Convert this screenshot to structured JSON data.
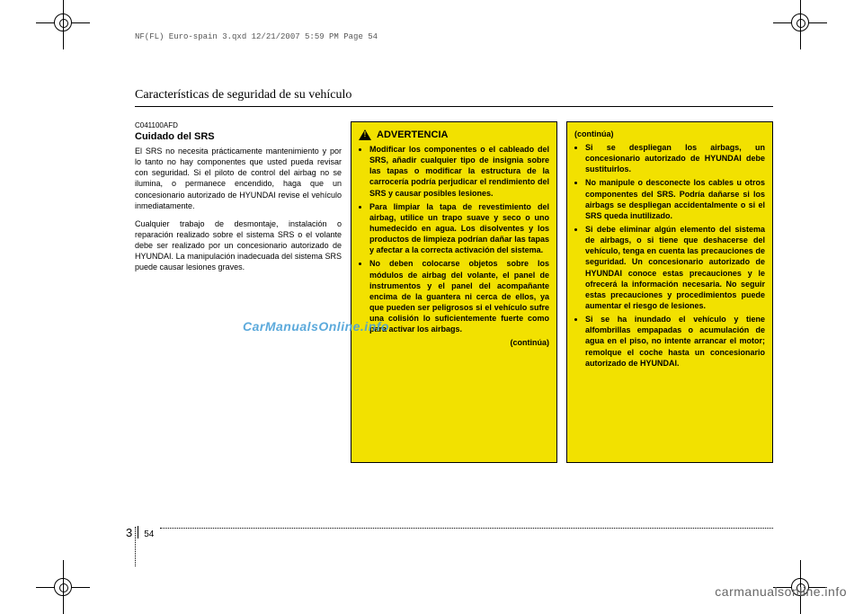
{
  "header_line": "NF(FL) Euro-spain 3.qxd  12/21/2007  5:59 PM  Page 54",
  "section_title": "Características de seguridad de su vehículo",
  "col1": {
    "code": "C041100AFD",
    "title": "Cuidado del SRS",
    "para1": "El SRS no necesita prácticamente mantenimiento y por lo tanto no hay componentes que usted pueda revisar con seguridad. Si el piloto de control del airbag no se ilumina, o permanece encendido, haga que un concesionario autorizado de HYUNDAI revise el vehículo inmediatamente.",
    "para2": "Cualquier trabajo de desmontaje, instalación o reparación realizado sobre el sistema SRS o el volante debe ser realizado por un concesionario autorizado de HYUNDAI. La manipulación inadecuada del sistema SRS puede causar lesiones graves."
  },
  "warning": {
    "title": "ADVERTENCIA",
    "items": [
      "Modificar los componentes o el cableado del SRS, añadir cualquier tipo de insignia sobre las tapas o modificar la estructura de la carrocería podría perjudicar el rendimiento del SRS y causar posibles lesiones.",
      "Para limpiar la tapa de revestimiento del airbag, utilice un trapo suave y seco o uno humedecido en agua. Los disolventes y los productos de limpieza podrían dañar las tapas y afectar a la correcta activación del sistema.",
      "No deben colocarse objetos sobre los módulos de airbag del volante, el panel de instrumentos y el panel del acompañante encima de la guantera ni cerca de ellos, ya que pueden ser peligrosos si el vehículo sufre una colisión lo suficientemente fuerte como para activar los airbags."
    ],
    "continua": "(continúa)"
  },
  "warning2": {
    "continua": "(continúa)",
    "items": [
      "Si se despliegan los airbags, un concesionario autorizado de HYUNDAI debe sustituirlos.",
      "No manipule o desconecte los cables u otros componentes del SRS. Podría dañarse si los airbags se despliegan accidentalmente o si el SRS queda inutilizado.",
      "Si debe eliminar algún elemento del sistema de airbags, o si tiene que deshacerse del vehículo, tenga en cuenta las precauciones de seguridad. Un concesionario autorizado de HYUNDAI conoce estas precauciones y le ofrecerá la información necesaria. No seguir estas precauciones y procedimientos puede aumentar el riesgo de lesiones.",
      "Si se ha inundado el vehículo y tiene alfombrillas empapadas o acumulación de agua en el piso, no intente arrancar el motor; remolque el coche hasta un concesionario autorizado de HYUNDAI."
    ]
  },
  "page_number": {
    "chapter": "3",
    "page": "54"
  },
  "watermark1": "CarManualsOnline.info",
  "watermark2": "carmanualsonline.info",
  "colors": {
    "warning_bg": "#f2e100",
    "watermark": "#4aa0d8"
  }
}
